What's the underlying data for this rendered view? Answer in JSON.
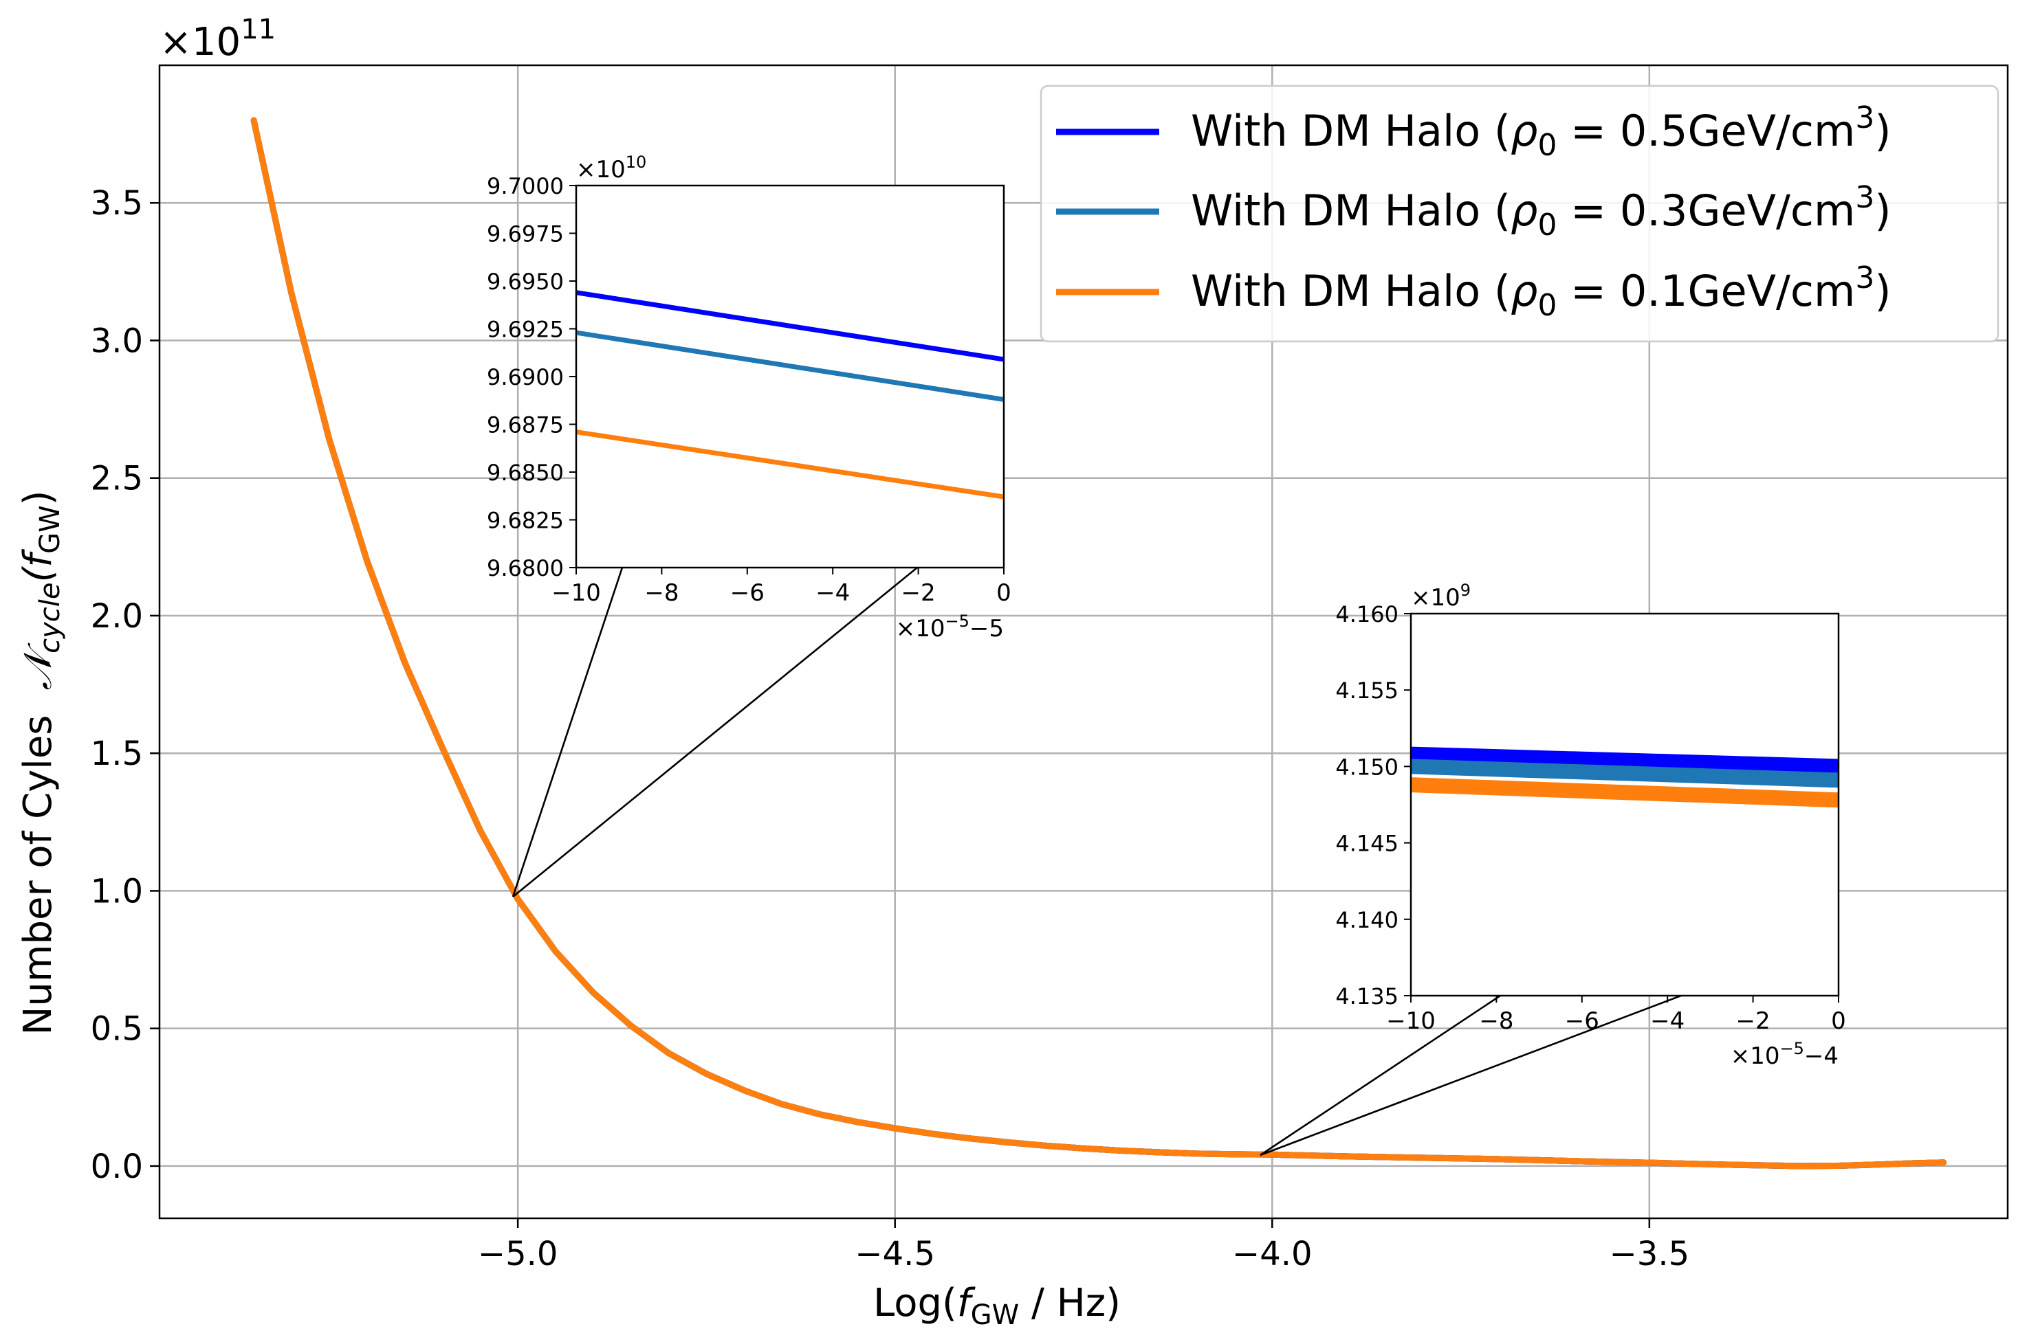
{
  "chart_data": [
    {
      "id": "main",
      "type": "line",
      "xlabel": "Log(",
      "xlabel_sym": "f",
      "xlabel_sub": "GW",
      "xlabel_tail": " / Hz)",
      "ylabel_main": "Number of Cyles",
      "ylabel_sym": "𝒩",
      "ylabel_sub": "cycle",
      "ylabel_f": "(f",
      "ylabel_f_sub": "GW",
      "ylabel_close": ")",
      "offset_base": "×10",
      "offset_exp": "11",
      "xlim": [
        -5.475,
        -3.025
      ],
      "ylim": [
        -0.19,
        4.0
      ],
      "grid": true,
      "x_ticks": [
        -5.0,
        -4.5,
        -4.0,
        -3.5
      ],
      "x_tick_labels": [
        "−5.0",
        "−4.5",
        "−4.0",
        "−3.5"
      ],
      "y_ticks": [
        0.0,
        0.5,
        1.0,
        1.5,
        2.0,
        2.5,
        3.0,
        3.5
      ],
      "y_tick_labels": [
        "0.0",
        "0.5",
        "1.0",
        "1.5",
        "2.0",
        "2.5",
        "3.0",
        "3.5"
      ],
      "legend_position": "top-right",
      "series": [
        {
          "name": "With DM Halo",
          "rho": "0.5GeV/cm",
          "color": "#0000ff"
        },
        {
          "name": "With DM Halo",
          "rho": "0.3GeV/cm",
          "color": "#1f77b4"
        },
        {
          "name": "With DM Halo",
          "rho": "0.1GeV/cm",
          "color": "#ff7f0e"
        }
      ],
      "x": [
        -5.35,
        -5.3,
        -5.25,
        -5.2,
        -5.15,
        -5.1,
        -5.05,
        -5.0,
        -4.95,
        -4.9,
        -4.85,
        -4.8,
        -4.75,
        -4.7,
        -4.65,
        -4.6,
        -4.55,
        -4.5,
        -4.45,
        -4.4,
        -4.35,
        -4.3,
        -4.25,
        -4.2,
        -4.15,
        -4.1,
        -4.05,
        -4.0,
        -3.9,
        -3.8,
        -3.7,
        -3.6,
        -3.5,
        -3.4,
        -3.3,
        -3.25,
        -3.2,
        -3.15,
        -3.11
      ],
      "y": [
        3.8,
        3.17,
        2.64,
        2.2,
        1.83,
        1.52,
        1.22,
        0.97,
        0.78,
        0.63,
        0.51,
        0.41,
        0.335,
        0.275,
        0.225,
        0.188,
        0.16,
        0.137,
        0.117,
        0.1,
        0.086,
        0.074,
        0.064,
        0.056,
        0.05,
        0.045,
        0.043,
        0.0415,
        0.035,
        0.03,
        0.025,
        0.018,
        0.012,
        0.005,
        0.0,
        0.001,
        0.005,
        0.01,
        0.013
      ]
    },
    {
      "id": "inset1",
      "type": "line",
      "xlim": [
        -10,
        0
      ],
      "ylim": [
        9.68,
        9.7
      ],
      "offset_base": "×10",
      "offset_exp": "10",
      "x_offset_base": "×10",
      "x_offset_exp": "−5",
      "x_offset_tail": "−5",
      "x_ticks": [
        -10,
        -8,
        -6,
        -4,
        -2,
        0
      ],
      "x_tick_labels": [
        "−10",
        "−8",
        "−6",
        "−4",
        "−2",
        "0"
      ],
      "y_ticks": [
        9.68,
        9.6825,
        9.685,
        9.6875,
        9.69,
        9.6925,
        9.695,
        9.6975,
        9.7
      ],
      "y_tick_labels": [
        "9.6800",
        "9.6825",
        "9.6850",
        "9.6875",
        "9.6900",
        "9.6925",
        "9.6950",
        "9.6975",
        "9.7000"
      ],
      "zoom_point": [
        -5.0,
        0.97
      ],
      "series": [
        {
          "x": [
            -10,
            0
          ],
          "y": [
            9.6944,
            9.6909
          ],
          "color": "#0000ff"
        },
        {
          "x": [
            -10,
            0
          ],
          "y": [
            9.6923,
            9.6888
          ],
          "color": "#1f77b4"
        },
        {
          "x": [
            -10,
            0
          ],
          "y": [
            9.6871,
            9.6837
          ],
          "color": "#ff7f0e"
        }
      ]
    },
    {
      "id": "inset2",
      "type": "line",
      "xlim": [
        -10,
        0
      ],
      "ylim": [
        4.135,
        4.16
      ],
      "offset_base": "×10",
      "offset_exp": "9",
      "x_offset_base": "×10",
      "x_offset_exp": "−5",
      "x_offset_tail": "−4",
      "x_ticks": [
        -10,
        -8,
        -6,
        -4,
        -2,
        0
      ],
      "x_tick_labels": [
        "−10",
        "−8",
        "−6",
        "−4",
        "−2",
        "0"
      ],
      "y_ticks": [
        4.135,
        4.14,
        4.145,
        4.15,
        4.155,
        4.16
      ],
      "y_tick_labels": [
        "4.135",
        "4.140",
        "4.145",
        "4.150",
        "4.155",
        "4.160"
      ],
      "zoom_point": [
        -4.0,
        0.0415
      ],
      "series": [
        {
          "x": [
            -10,
            0
          ],
          "y": [
            4.1508,
            4.15
          ],
          "color": "#0000ff"
        },
        {
          "x": [
            -10,
            0
          ],
          "y": [
            4.15,
            4.1491
          ],
          "color": "#1f77b4"
        },
        {
          "x": [
            -10,
            0
          ],
          "y": [
            4.1488,
            4.1478
          ],
          "color": "#ff7f0e"
        }
      ]
    }
  ]
}
